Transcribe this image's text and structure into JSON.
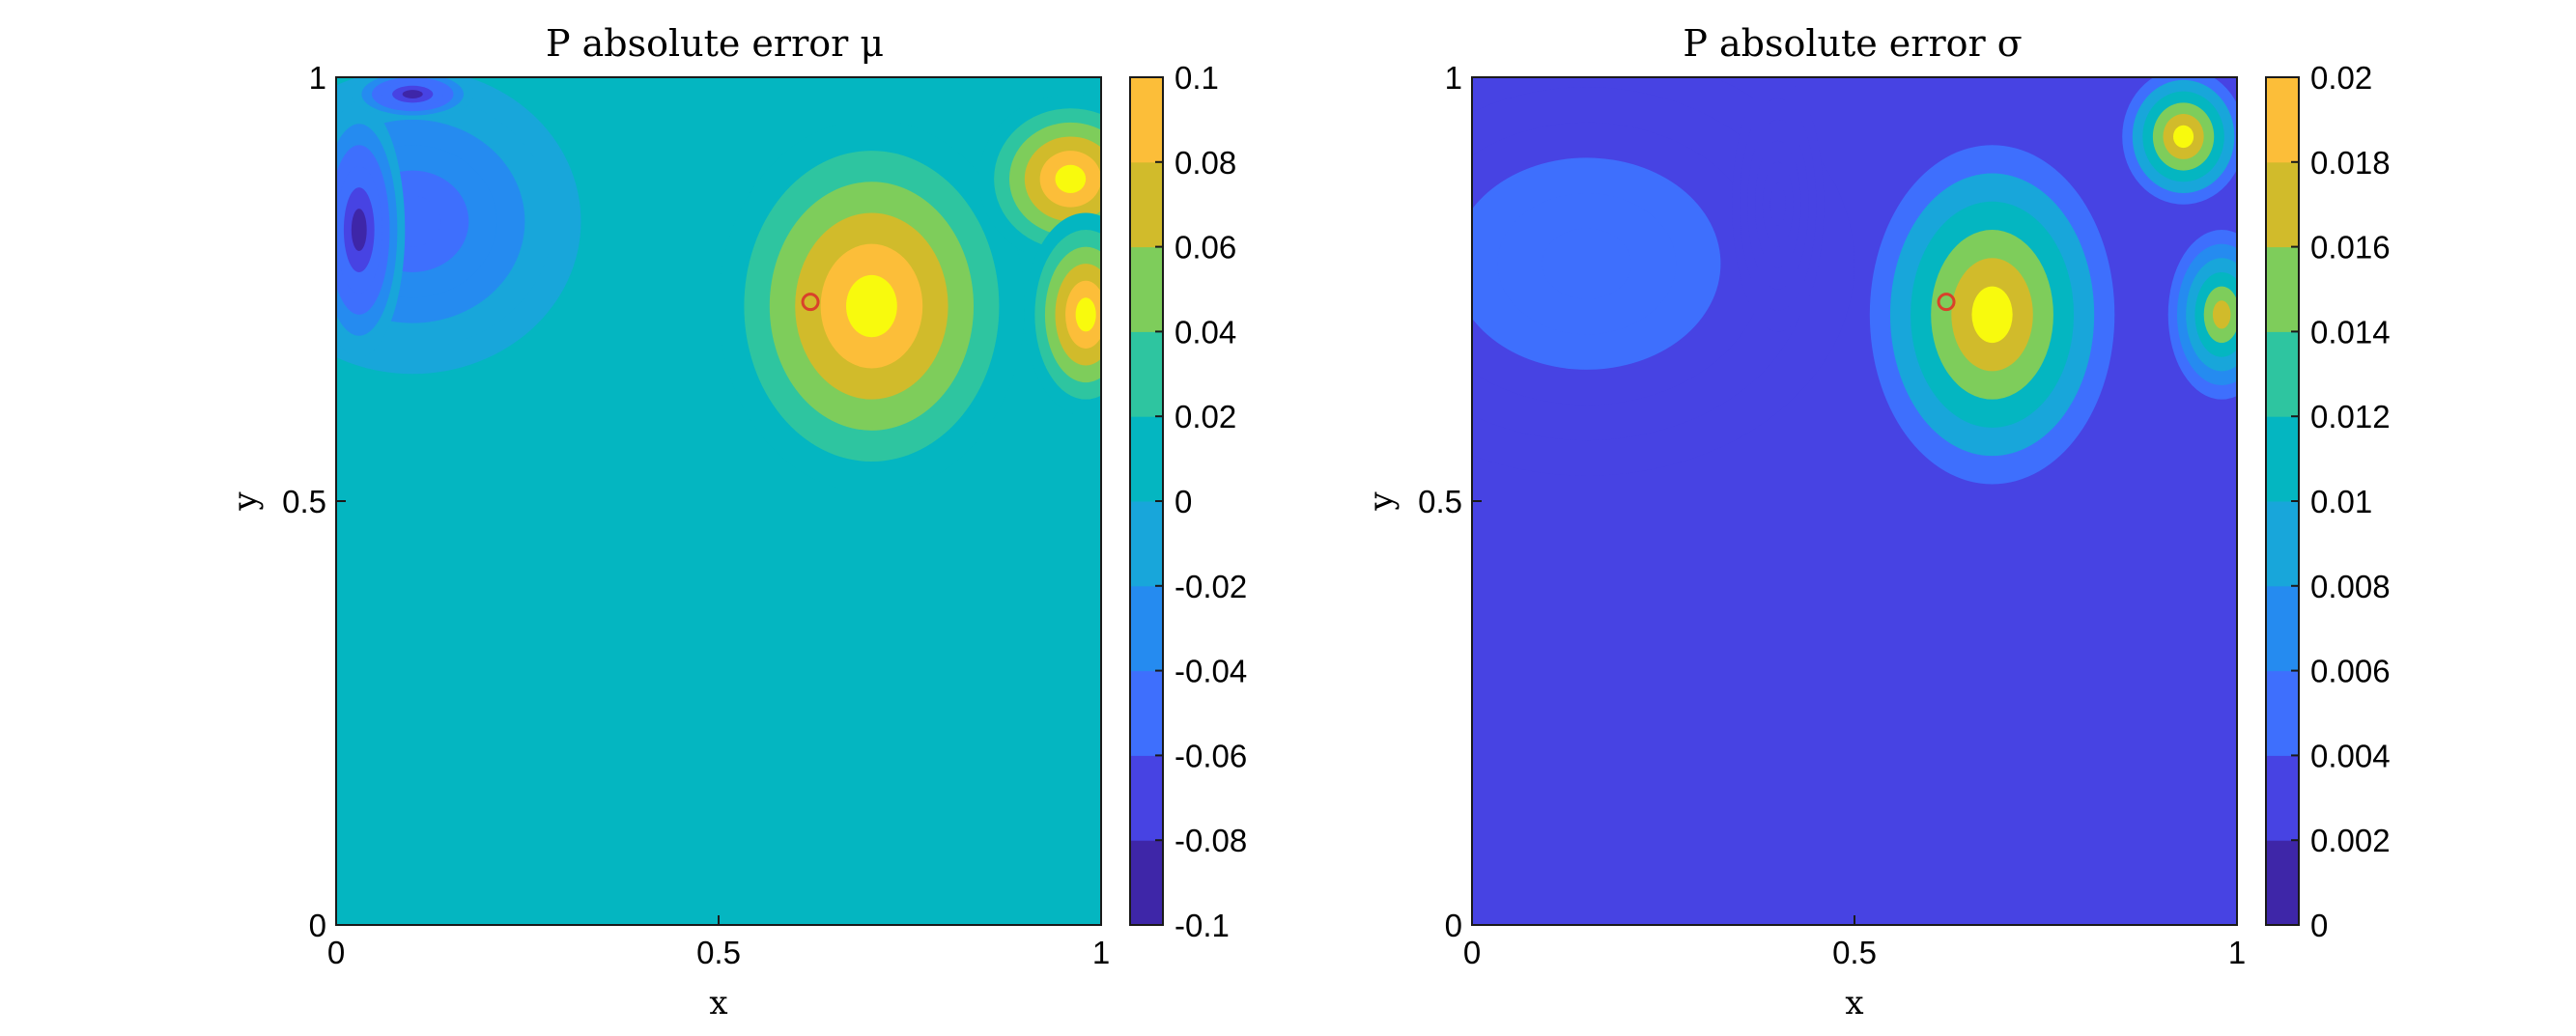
{
  "chart_data": [
    {
      "type": "heatmap",
      "subtype": "filled-contour",
      "title": "P absolute error μ",
      "xlabel": "x",
      "ylabel": "y",
      "xlim": [
        0,
        1
      ],
      "ylim": [
        0,
        1
      ],
      "xticks": [
        "0",
        "0.5",
        "1"
      ],
      "yticks": [
        "0",
        "0.5",
        "1"
      ],
      "colorbar": {
        "range": [
          -0.1,
          0.1
        ],
        "ticks": [
          "-0.1",
          "-0.08",
          "-0.06",
          "-0.04",
          "-0.02",
          "0",
          "0.02",
          "0.04",
          "0.06",
          "0.08",
          "0.1"
        ]
      },
      "background_value": -0.01,
      "features": [
        {
          "kind": "peak",
          "x": 0.7,
          "y": 0.73,
          "rx": 0.2,
          "ry": 0.22,
          "value": 0.1
        },
        {
          "kind": "peak",
          "x": 0.96,
          "y": 0.88,
          "rx": 0.12,
          "ry": 0.1,
          "value": 0.1
        },
        {
          "kind": "peak",
          "x": 0.98,
          "y": 0.72,
          "rx": 0.08,
          "ry": 0.12,
          "value": 0.1
        },
        {
          "kind": "trough",
          "x": 0.03,
          "y": 0.82,
          "rx": 0.06,
          "ry": 0.15,
          "value": -0.1
        },
        {
          "kind": "trough",
          "x": 0.1,
          "y": 0.98,
          "rx": 0.08,
          "ry": 0.03,
          "value": -0.1
        },
        {
          "kind": "region",
          "x": 0.1,
          "y": 0.83,
          "rx": 0.22,
          "ry": 0.18,
          "value": -0.06
        }
      ],
      "marker": {
        "x": 0.62,
        "y": 0.735,
        "color": "#d9412b"
      }
    },
    {
      "type": "heatmap",
      "subtype": "filled-contour",
      "title": "P absolute error σ",
      "xlabel": "x",
      "ylabel": "y",
      "xlim": [
        0,
        1
      ],
      "ylim": [
        0,
        1
      ],
      "xticks": [
        "0",
        "0.5",
        "1"
      ],
      "yticks": [
        "0",
        "0.5",
        "1"
      ],
      "colorbar": {
        "range": [
          0,
          0.02
        ],
        "ticks": [
          "0",
          "0.002",
          "0.004",
          "0.006",
          "0.008",
          "0.01",
          "0.012",
          "0.014",
          "0.016",
          "0.018",
          "0.02"
        ]
      },
      "background_value": 0.001,
      "features": [
        {
          "kind": "peak",
          "x": 0.68,
          "y": 0.72,
          "rx": 0.16,
          "ry": 0.2,
          "value": 0.02
        },
        {
          "kind": "peak",
          "x": 0.93,
          "y": 0.93,
          "rx": 0.08,
          "ry": 0.08,
          "value": 0.02
        },
        {
          "kind": "peak",
          "x": 0.98,
          "y": 0.72,
          "rx": 0.07,
          "ry": 0.1,
          "value": 0.016
        },
        {
          "kind": "region",
          "x": 0.15,
          "y": 0.78,
          "rx": 0.35,
          "ry": 0.25,
          "value": 0.004
        },
        {
          "kind": "low",
          "x": 0.4,
          "y": 0.85,
          "rx": 0.06,
          "ry": 0.15,
          "value": 0.001
        }
      ],
      "marker": {
        "x": 0.62,
        "y": 0.735,
        "color": "#d9412b"
      }
    }
  ],
  "colormap": [
    "#3e26a8",
    "#4743e3",
    "#3e6ffd",
    "#258bf0",
    "#18a6da",
    "#04b6c1",
    "#2ec5a0",
    "#7ecd5b",
    "#d1bb2b",
    "#fcbe39",
    "#f8fa0d"
  ]
}
